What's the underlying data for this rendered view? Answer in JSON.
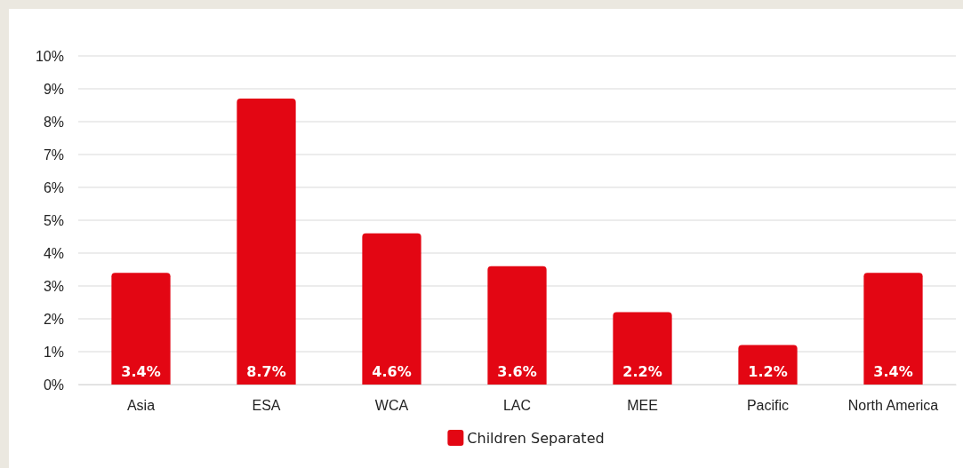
{
  "chart_data": {
    "type": "bar",
    "categories": [
      "Asia",
      "ESA",
      "WCA",
      "LAC",
      "MEE",
      "Pacific",
      "North America"
    ],
    "series": [
      {
        "name": "Children Separated",
        "color": "#e30613",
        "values": [
          3.4,
          8.7,
          4.6,
          3.6,
          2.2,
          1.2,
          3.4
        ]
      }
    ],
    "ylim": [
      0,
      10
    ],
    "yticks": [
      {
        "value": 0,
        "label": "0%"
      },
      {
        "value": 1,
        "label": "1%"
      },
      {
        "value": 2,
        "label": "2%"
      },
      {
        "value": 3,
        "label": "3%"
      },
      {
        "value": 4,
        "label": "4%"
      },
      {
        "value": 5,
        "label": "5%"
      },
      {
        "value": 6,
        "label": "6%"
      },
      {
        "value": 7,
        "label": "7%"
      },
      {
        "value": 8,
        "label": "8%"
      },
      {
        "value": 9,
        "label": "9%"
      },
      {
        "value": 10,
        "label": "10%"
      }
    ],
    "grid": "y",
    "legend": "bottom",
    "value_labels": [
      "3.4%",
      "8.7%",
      "4.6%",
      "3.6%",
      "2.2%",
      "1.2%",
      "3.4%"
    ]
  }
}
